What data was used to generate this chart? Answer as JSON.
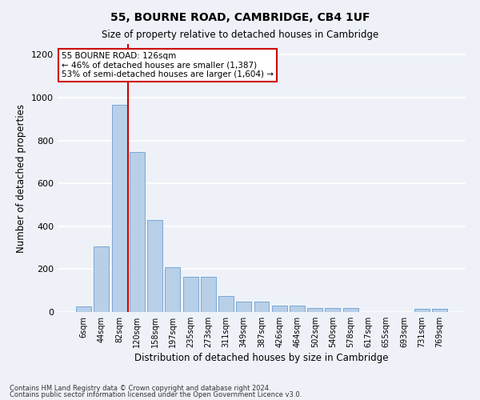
{
  "title1": "55, BOURNE ROAD, CAMBRIDGE, CB4 1UF",
  "title2": "Size of property relative to detached houses in Cambridge",
  "xlabel": "Distribution of detached houses by size in Cambridge",
  "ylabel": "Number of detached properties",
  "categories": [
    "6sqm",
    "44sqm",
    "82sqm",
    "120sqm",
    "158sqm",
    "197sqm",
    "235sqm",
    "273sqm",
    "311sqm",
    "349sqm",
    "387sqm",
    "426sqm",
    "464sqm",
    "502sqm",
    "540sqm",
    "578sqm",
    "617sqm",
    "655sqm",
    "693sqm",
    "731sqm",
    "769sqm"
  ],
  "values": [
    25,
    305,
    965,
    745,
    430,
    210,
    165,
    165,
    75,
    48,
    48,
    30,
    30,
    18,
    18,
    18,
    0,
    0,
    0,
    15,
    15
  ],
  "bar_color": "#b8cfe8",
  "bar_edge_color": "#6a9fd0",
  "vline_color": "#cc0000",
  "annotation_text": "55 BOURNE ROAD: 126sqm\n← 46% of detached houses are smaller (1,387)\n53% of semi-detached houses are larger (1,604) →",
  "annotation_box_color": "white",
  "annotation_box_edge_color": "#cc0000",
  "footnote1": "Contains HM Land Registry data © Crown copyright and database right 2024.",
  "footnote2": "Contains public sector information licensed under the Open Government Licence v3.0.",
  "ylim": [
    0,
    1250
  ],
  "background_color": "#eef2f8",
  "plot_bg_color": "#eef2f8",
  "grid_color": "#ffffff"
}
